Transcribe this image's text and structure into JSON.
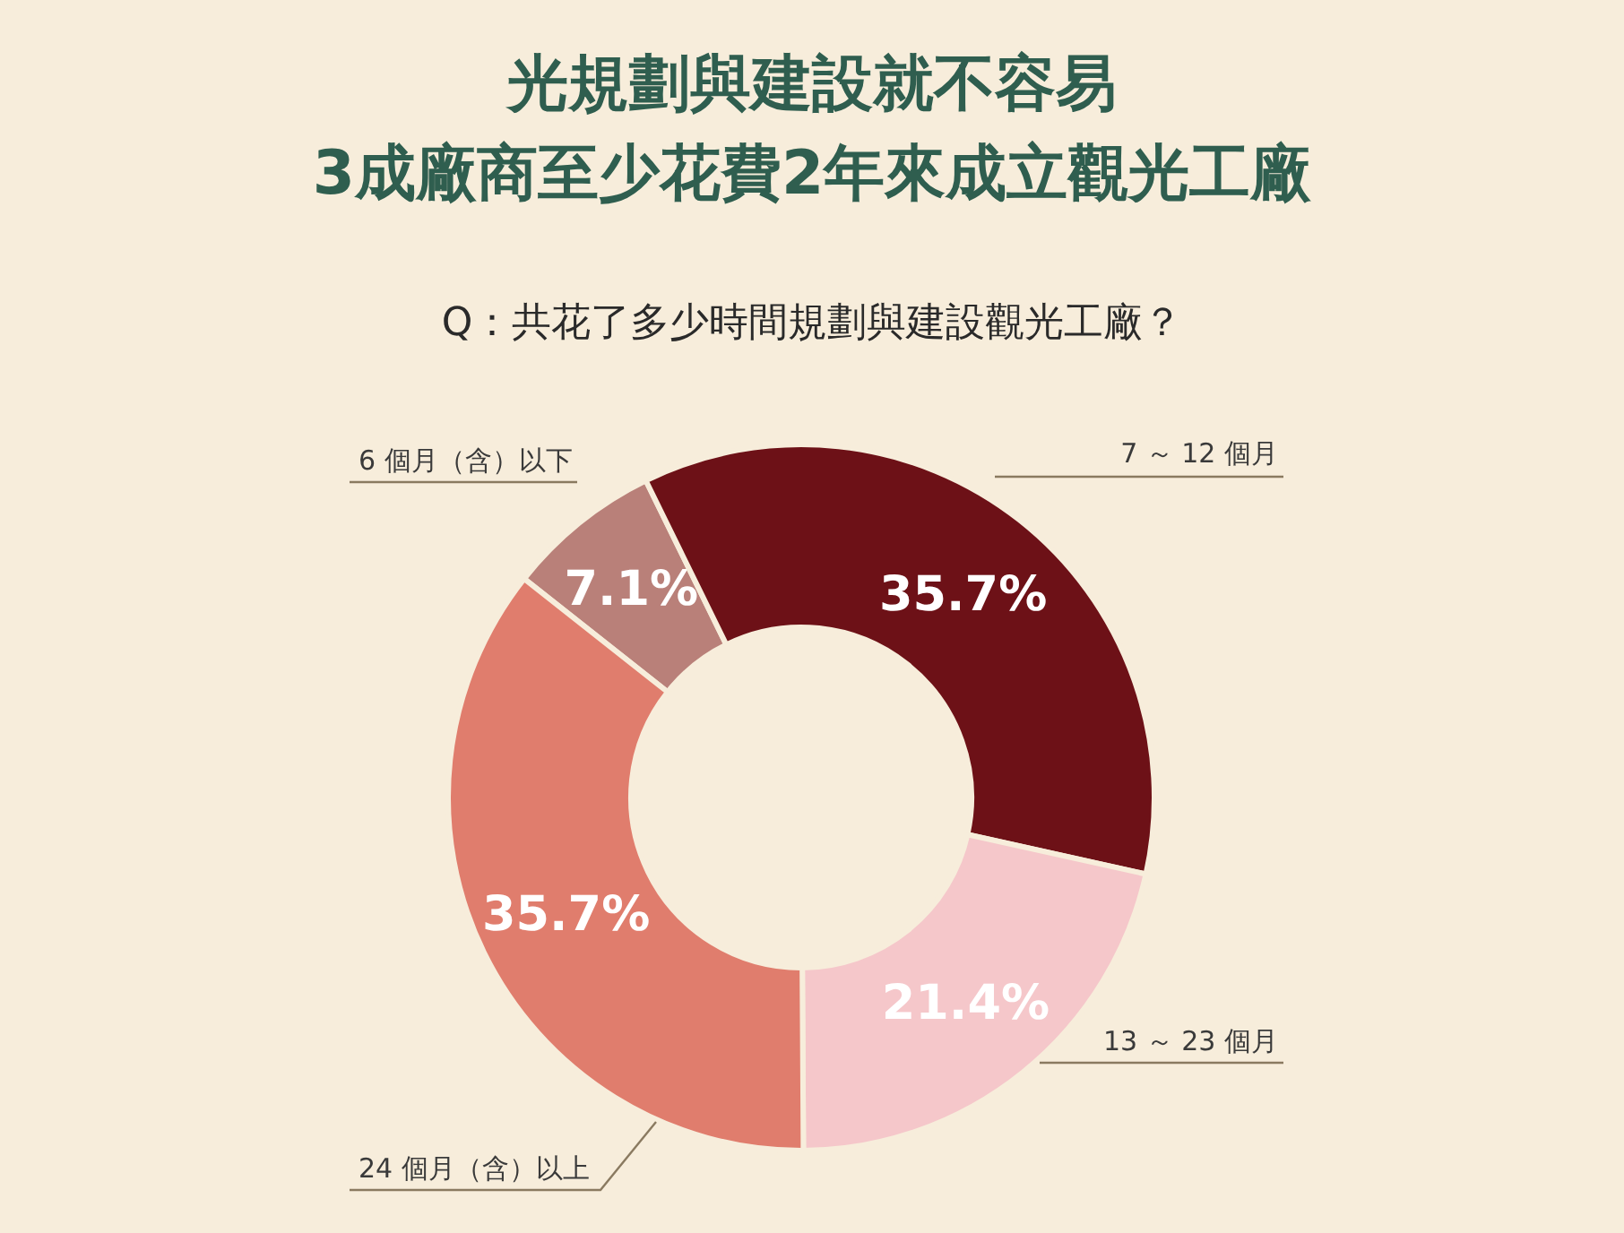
{
  "chart_data": {
    "type": "donut",
    "title": "光規劃與建設就不容易\n3成廠商至少花費2年來成立觀光工廠",
    "subtitle": "Q：共花了多少時間規劃與建設觀光工廠？",
    "categories": [
      "6 個月（含）以下",
      "7 ～ 12 個月",
      "13 ～ 23 個月",
      "24 個月（含）以上"
    ],
    "values": [
      7.1,
      35.7,
      21.4,
      35.7
    ],
    "colors": [
      "#b98079",
      "#6d1117",
      "#f5c7ca",
      "#e07d6d"
    ],
    "value_labels": [
      "7.1%",
      "35.7%",
      "21.4%",
      "35.7%"
    ]
  }
}
